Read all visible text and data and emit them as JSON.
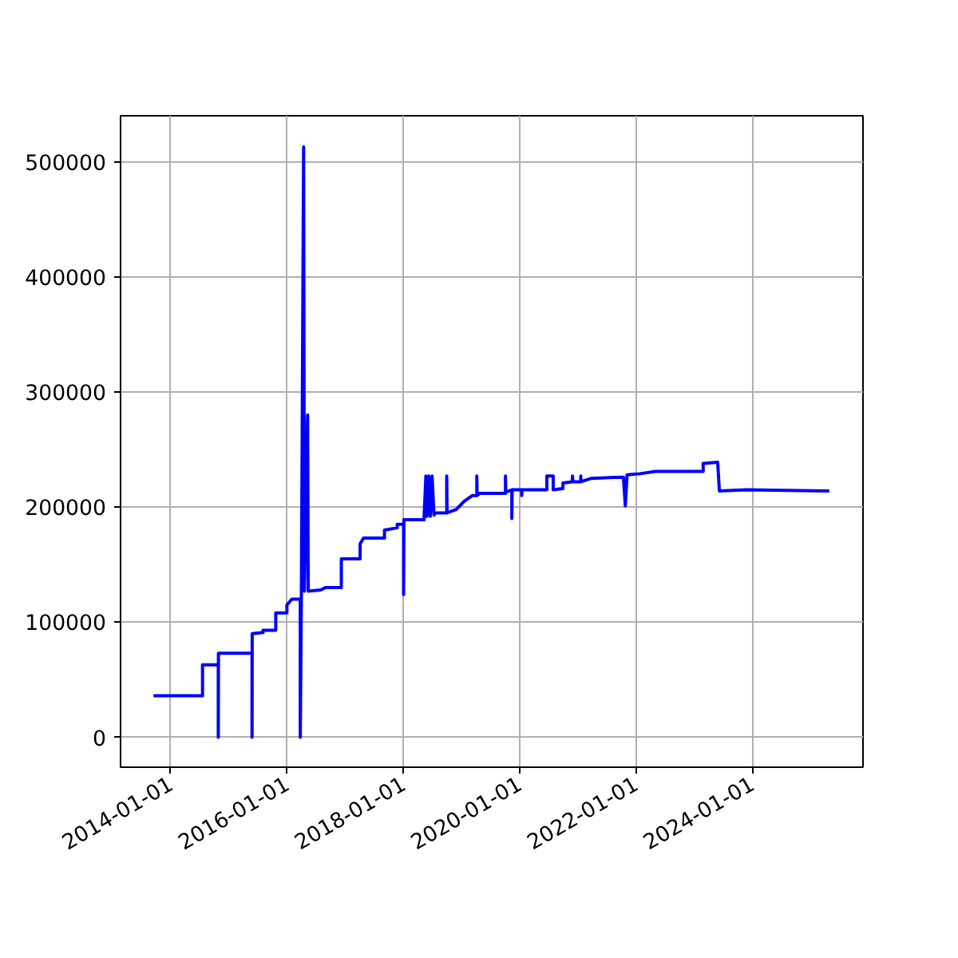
{
  "chart_data": {
    "type": "line",
    "x": [
      "2013-09-15",
      "2014-07-20",
      "2014-07-20",
      "2014-10-27",
      "2014-10-27",
      "2014-10-28",
      "2015-05-27",
      "2015-05-27",
      "2015-05-28",
      "2015-08-04",
      "2015-08-04",
      "2015-10-23",
      "2015-10-23",
      "2016-01-01",
      "2016-01-01",
      "2016-02-01",
      "2016-03-25",
      "2016-03-25",
      "2016-04-01",
      "2016-04-15",
      "2016-04-20",
      "2016-05-10",
      "2016-05-14",
      "2016-07-31",
      "2016-08-29",
      "2016-12-08",
      "2016-12-08",
      "2017-04-05",
      "2017-04-05",
      "2017-04-26",
      "2017-09-05",
      "2017-09-05",
      "2017-11-24",
      "2017-11-24",
      "2018-01-03",
      "2018-01-03",
      "2018-01-05",
      "2018-05-12",
      "2018-05-12",
      "2018-05-23",
      "2018-05-30",
      "2018-06-10",
      "2018-06-20",
      "2018-07-01",
      "2018-07-13",
      "2018-07-20",
      "2018-10-01",
      "2018-10-01",
      "2018-10-03",
      "2018-11-30",
      "2019-01-19",
      "2019-03-10",
      "2019-04-08",
      "2019-04-08",
      "2019-04-10",
      "2019-04-27",
      "2019-10-05",
      "2019-10-05",
      "2019-10-07",
      "2019-11-14",
      "2019-11-14",
      "2019-11-16",
      "2020-01-15",
      "2020-01-15",
      "2020-01-17",
      "2020-06-21",
      "2020-06-21",
      "2020-07-31",
      "2020-07-31",
      "2020-09-30",
      "2020-09-30",
      "2020-11-29",
      "2020-11-29",
      "2020-12-01",
      "2021-01-20",
      "2021-01-20",
      "2021-01-22",
      "2021-03-28",
      "2021-10-15",
      "2021-10-27",
      "2021-11-07",
      "2022-01-26",
      "2022-05-05",
      "2023-02-28",
      "2023-02-28",
      "2023-05-30",
      "2023-06-10",
      "2023-11-25",
      "2025-04-30"
    ],
    "series": [
      {
        "color": "#0000ff",
        "values": [
          36000,
          36000,
          63000,
          63000,
          0,
          73000,
          73000,
          0,
          90000,
          91000,
          93000,
          93000,
          108000,
          108000,
          115000,
          120000,
          120000,
          0,
          125000,
          513000,
          127000,
          280000,
          127000,
          128000,
          130000,
          130000,
          155000,
          155000,
          168000,
          173000,
          173000,
          180000,
          182000,
          185000,
          185000,
          124000,
          189000,
          189000,
          192000,
          227000,
          192000,
          227000,
          192000,
          227000,
          193000,
          195000,
          195000,
          227000,
          195000,
          198000,
          205000,
          210000,
          210000,
          227000,
          210000,
          212000,
          212000,
          227000,
          213000,
          215000,
          190000,
          215000,
          215000,
          210000,
          215000,
          215000,
          227000,
          227000,
          215000,
          216000,
          221000,
          222000,
          227000,
          222000,
          222000,
          227000,
          222000,
          225000,
          226000,
          201000,
          228000,
          229000,
          231000,
          231000,
          238000,
          239000,
          214000,
          215000,
          214000
        ]
      }
    ],
    "xlim": [
      "2013-02-20",
      "2025-11-28"
    ],
    "xticks": [
      "2014-01-01",
      "2016-01-01",
      "2018-01-01",
      "2020-01-01",
      "2022-01-01",
      "2024-01-01"
    ],
    "ylim": [
      -26000,
      540000
    ],
    "yticks": [
      0,
      100000,
      200000,
      300000,
      400000,
      500000
    ],
    "grid": true,
    "marker": "none",
    "line_style": "solid"
  }
}
